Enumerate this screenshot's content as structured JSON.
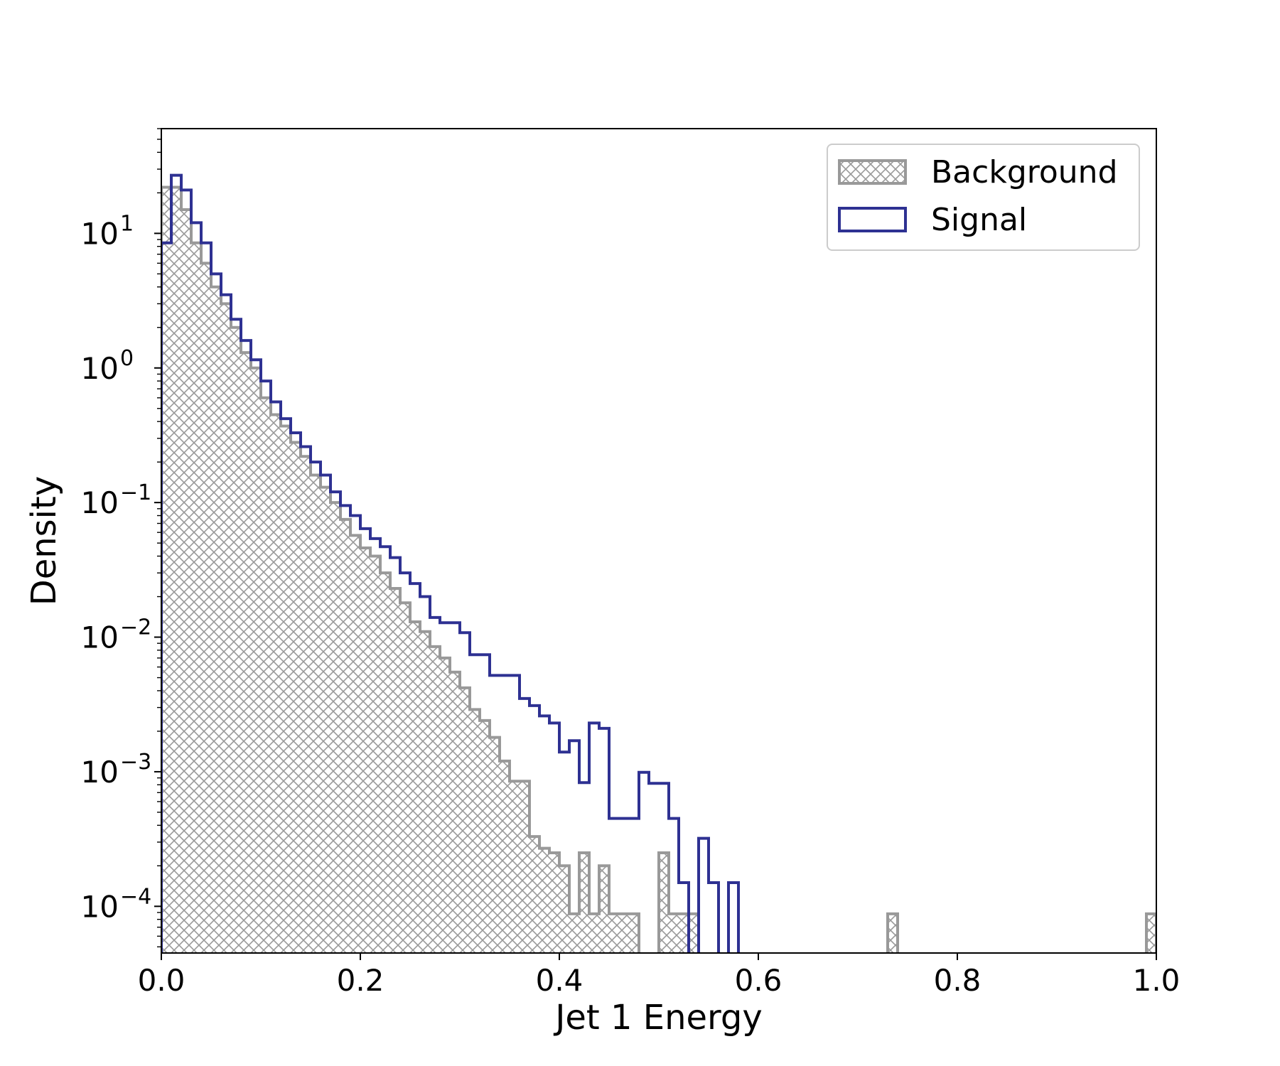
{
  "chart_data": {
    "type": "histogram",
    "xlabel": "Jet 1 Energy",
    "ylabel": "Density",
    "xlim": [
      0.0,
      1.0
    ],
    "ylim": [
      4.5e-05,
      60
    ],
    "yscale": "log",
    "bin_width": 0.01,
    "x_ticks": [
      "0.0",
      "0.2",
      "0.4",
      "0.6",
      "0.8",
      "1.0"
    ],
    "x_tick_values": [
      0.0,
      0.2,
      0.4,
      0.6,
      0.8,
      1.0
    ],
    "y_ticks": [
      {
        "base": "10",
        "exp": "1",
        "value": 10
      },
      {
        "base": "10",
        "exp": "0",
        "value": 1
      },
      {
        "base": "10",
        "exp": "−1",
        "value": 0.1
      },
      {
        "base": "10",
        "exp": "−2",
        "value": 0.01
      },
      {
        "base": "10",
        "exp": "−3",
        "value": 0.001
      },
      {
        "base": "10",
        "exp": "−4",
        "value": 0.0001
      }
    ],
    "legend_position": "top-right",
    "grid": false,
    "series": [
      {
        "name": "Background",
        "style": "hatched",
        "color": "#999999",
        "bin_edges_start": 0.0,
        "values": [
          22,
          22,
          15,
          8.5,
          6,
          4,
          3,
          2,
          1.3,
          1.0,
          0.6,
          0.45,
          0.37,
          0.28,
          0.22,
          0.16,
          0.13,
          0.1,
          0.075,
          0.057,
          0.046,
          0.04,
          0.03,
          0.023,
          0.018,
          0.013,
          0.011,
          0.0085,
          0.007,
          0.0055,
          0.0042,
          0.0029,
          0.0024,
          0.0018,
          0.0012,
          0.00085,
          0.00085,
          0.00033,
          0.00027,
          0.00025,
          0.0002,
          8.8e-05,
          0.00025,
          8.8e-05,
          0.0002,
          8.8e-05,
          8.8e-05,
          8.8e-05,
          0,
          0,
          0.00025,
          8.8e-05,
          8.8e-05,
          8.8e-05,
          0,
          0,
          0,
          0,
          0,
          0,
          0,
          0,
          0,
          0,
          0,
          0,
          0,
          0,
          0,
          0,
          0,
          0,
          0,
          8.8e-05,
          0,
          0,
          0,
          0,
          0,
          0,
          0,
          0,
          0,
          0,
          0,
          0,
          0,
          0,
          0,
          0,
          0,
          0,
          0,
          0,
          0,
          0,
          0,
          0,
          0,
          8.8e-05
        ]
      },
      {
        "name": "Signal",
        "style": "step",
        "color": "#2e3192",
        "bin_edges_start": 0.0,
        "values": [
          8.5,
          27,
          21,
          12,
          8.5,
          5,
          3.5,
          2.3,
          1.6,
          1.15,
          0.8,
          0.56,
          0.42,
          0.33,
          0.26,
          0.2,
          0.16,
          0.12,
          0.095,
          0.08,
          0.064,
          0.054,
          0.047,
          0.039,
          0.03,
          0.025,
          0.02,
          0.014,
          0.0128,
          0.0128,
          0.0108,
          0.0074,
          0.0074,
          0.0052,
          0.0052,
          0.0052,
          0.0035,
          0.0031,
          0.0026,
          0.0023,
          0.0014,
          0.0017,
          0.00083,
          0.0023,
          0.0021,
          0.00045,
          0.00045,
          0.00045,
          0.00099,
          0.00082,
          0.00082,
          0.00045,
          0.00015,
          0,
          0.00032,
          0.00015,
          0,
          0.00015,
          0
        ]
      }
    ]
  }
}
